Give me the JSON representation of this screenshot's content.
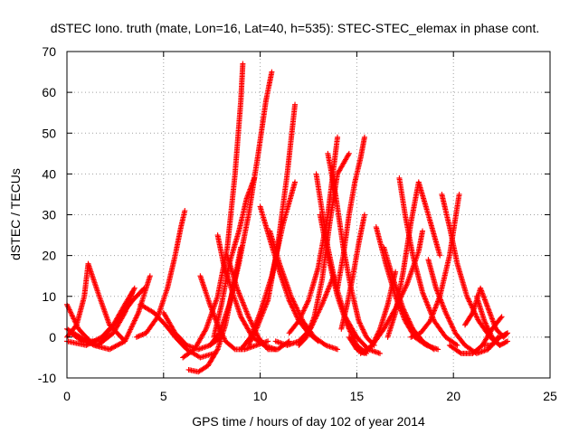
{
  "chart_data": {
    "type": "scatter",
    "title": "dSTEC Iono. truth (mate, Lon=16, Lat=40, h=535): STEC-STEC_elemax in phase cont.",
    "xlabel": "GPS time / hours of day 102 of year 2014",
    "ylabel": "dSTEC  / TECUs",
    "xlim": [
      0,
      25
    ],
    "ylim": [
      -10,
      70
    ],
    "x_ticks": [
      0,
      5,
      10,
      15,
      20,
      25
    ],
    "y_ticks": [
      -10,
      0,
      10,
      20,
      30,
      40,
      50,
      60,
      70
    ],
    "x_tick_labels": [
      "0",
      "5",
      "10",
      "15",
      "20",
      "25"
    ],
    "y_tick_labels": [
      "-10",
      "0",
      "10",
      "20",
      "30",
      "40",
      "50",
      "60",
      "70"
    ],
    "grid": true,
    "marker": "+",
    "marker_color": "#ff0000",
    "series": [
      {
        "x": [
          0.0,
          0.6,
          1.2,
          1.8,
          2.4,
          3.0,
          3.5
        ],
        "y": [
          8,
          2,
          -1,
          -1,
          3,
          8,
          12
        ]
      },
      {
        "x": [
          0.0,
          0.7,
          1.4,
          2.2,
          3.0,
          3.7,
          4.3
        ],
        "y": [
          2,
          0,
          -2,
          -3,
          -1,
          6,
          15
        ]
      },
      {
        "x": [
          0.0,
          0.5,
          0.9,
          1.1,
          1.6,
          2.2,
          3.0
        ],
        "y": [
          0,
          3,
          10,
          18,
          11,
          3,
          -1
        ]
      },
      {
        "x": [
          0.2,
          0.8,
          1.6,
          2.4,
          3.0,
          3.4
        ],
        "y": [
          1,
          -1,
          -2,
          1,
          6,
          11
        ]
      },
      {
        "x": [
          0.0,
          1.0,
          1.8,
          2.6,
          3.4,
          4.0
        ],
        "y": [
          -1,
          -2,
          0,
          4,
          9,
          12
        ]
      },
      {
        "x": [
          3.6,
          4.1,
          4.7,
          5.2,
          5.6,
          5.9,
          6.1
        ],
        "y": [
          0,
          1,
          5,
          12,
          20,
          27,
          31
        ]
      },
      {
        "x": [
          3.8,
          4.5,
          5.1,
          5.6,
          6.2,
          6.9,
          7.6
        ],
        "y": [
          8,
          6,
          3,
          0,
          -3,
          -5,
          -4
        ]
      },
      {
        "x": [
          5.0,
          5.6,
          6.2,
          6.8,
          7.4,
          8.0
        ],
        "y": [
          6,
          1,
          -2,
          -3,
          -2,
          0
        ]
      },
      {
        "x": [
          6.0,
          6.6,
          7.2,
          7.8,
          8.3,
          8.7,
          9.0,
          9.1
        ],
        "y": [
          -5,
          -3,
          2,
          10,
          22,
          40,
          58,
          67
        ]
      },
      {
        "x": [
          6.3,
          6.8,
          7.3,
          7.8,
          8.2,
          8.6,
          9.0
        ],
        "y": [
          -8,
          -8.5,
          -7,
          -3,
          3,
          12,
          22
        ]
      },
      {
        "x": [
          6.9,
          7.4,
          7.8,
          8.2,
          8.7,
          9.2,
          9.8,
          10.4
        ],
        "y": [
          15,
          8,
          3,
          -1,
          -3,
          -3,
          -2,
          -1
        ]
      },
      {
        "x": [
          7.4,
          7.9,
          8.4,
          8.9,
          9.4,
          9.9,
          10.3,
          10.6
        ],
        "y": [
          -2,
          1,
          8,
          18,
          30,
          45,
          58,
          65
        ]
      },
      {
        "x": [
          7.6,
          8.0,
          8.4,
          8.9,
          9.3,
          9.7
        ],
        "y": [
          0,
          8,
          18,
          26,
          34,
          39
        ]
      },
      {
        "x": [
          7.8,
          8.1,
          8.5,
          9.0,
          9.6,
          10.2,
          10.8
        ],
        "y": [
          25,
          18,
          12,
          5,
          0,
          -2,
          -3
        ]
      },
      {
        "x": [
          8.3,
          8.8,
          9.4,
          9.9,
          10.4,
          10.9,
          11.5
        ],
        "y": [
          20,
          12,
          5,
          0,
          -3,
          -3,
          -1
        ]
      },
      {
        "x": [
          9.0,
          9.5,
          10.0,
          10.6,
          11.2,
          11.8
        ],
        "y": [
          -3,
          0,
          6,
          15,
          28,
          38
        ]
      },
      {
        "x": [
          9.4,
          9.8,
          10.4,
          10.9,
          11.4,
          11.8
        ],
        "y": [
          -2,
          2,
          9,
          22,
          40,
          57
        ]
      },
      {
        "x": [
          10.0,
          10.5,
          11.0,
          11.5,
          12.0,
          12.5,
          13.0
        ],
        "y": [
          32,
          24,
          16,
          9,
          4,
          1,
          -1
        ]
      },
      {
        "x": [
          10.5,
          11.0,
          11.6,
          12.2,
          12.8,
          13.4,
          14.0
        ],
        "y": [
          26,
          18,
          10,
          4,
          0,
          -2,
          -3
        ]
      },
      {
        "x": [
          10.8,
          11.4,
          12.0,
          12.6,
          13.2,
          13.8
        ],
        "y": [
          -1,
          -2,
          -1,
          2,
          8,
          15
        ]
      },
      {
        "x": [
          11.5,
          12.0,
          12.5,
          13.0,
          13.5,
          14.0
        ],
        "y": [
          1,
          4,
          9,
          17,
          30,
          49
        ]
      },
      {
        "x": [
          12.0,
          12.4,
          12.8,
          13.2,
          13.6,
          14.0,
          14.6
        ],
        "y": [
          -2,
          0,
          5,
          14,
          28,
          40,
          45
        ]
      },
      {
        "x": [
          12.9,
          13.2,
          13.5,
          13.9,
          14.4,
          15.0,
          15.6,
          16.2
        ],
        "y": [
          40,
          31,
          22,
          13,
          5,
          0,
          -3,
          -4
        ]
      },
      {
        "x": [
          13.1,
          13.5,
          14.0,
          14.5,
          15.0,
          15.5
        ],
        "y": [
          30,
          20,
          10,
          3,
          -2,
          -4
        ]
      },
      {
        "x": [
          13.5,
          13.9,
          14.3,
          14.7,
          15.1,
          15.5,
          15.9
        ],
        "y": [
          45,
          35,
          22,
          12,
          4,
          0,
          -2
        ]
      },
      {
        "x": [
          14.0,
          14.3,
          14.6,
          14.9,
          15.2,
          15.4
        ],
        "y": [
          12,
          20,
          30,
          38,
          44,
          49
        ]
      },
      {
        "x": [
          14.2,
          14.5,
          14.8,
          15.1,
          15.4
        ],
        "y": [
          2,
          8,
          15,
          23,
          30
        ]
      },
      {
        "x": [
          14.6,
          15.0,
          15.4,
          15.8,
          16.2,
          16.6,
          17.0
        ],
        "y": [
          0,
          -3,
          -4,
          -2,
          2,
          8,
          16
        ]
      },
      {
        "x": [
          15.2,
          15.8,
          16.4,
          17.0,
          17.6,
          18.2,
          18.4
        ],
        "y": [
          -4,
          -2,
          2,
          7,
          13,
          21,
          26
        ]
      },
      {
        "x": [
          16.0,
          16.5,
          17.0,
          17.5,
          18.0,
          18.6,
          19.2
        ],
        "y": [
          27,
          18,
          10,
          4,
          0,
          -2,
          -3
        ]
      },
      {
        "x": [
          16.4,
          16.9,
          17.4,
          17.9,
          18.4,
          19.0
        ],
        "y": [
          22,
          14,
          7,
          2,
          -1,
          -3
        ]
      },
      {
        "x": [
          16.6,
          17.0,
          17.4,
          17.8,
          18.2,
          18.7,
          19.3
        ],
        "y": [
          0,
          6,
          16,
          28,
          38,
          30,
          20
        ]
      },
      {
        "x": [
          17.2,
          17.5,
          17.9,
          18.4,
          19.0,
          19.6,
          20.2
        ],
        "y": [
          39,
          30,
          20,
          11,
          4,
          0,
          -2
        ]
      },
      {
        "x": [
          17.8,
          18.3,
          18.8,
          19.3,
          19.8,
          20.3
        ],
        "y": [
          0,
          1,
          4,
          10,
          20,
          35
        ]
      },
      {
        "x": [
          18.7,
          19.1,
          19.6,
          20.1,
          20.6,
          21.2,
          21.8,
          22.3
        ],
        "y": [
          19,
          12,
          6,
          1,
          -2,
          -4,
          -3,
          0
        ]
      },
      {
        "x": [
          19.4,
          19.8,
          20.2,
          20.7,
          21.3,
          21.9,
          22.4
        ],
        "y": [
          35,
          27,
          18,
          10,
          4,
          0,
          -2
        ]
      },
      {
        "x": [
          19.8,
          20.4,
          21.0,
          21.5,
          22.0,
          22.5
        ],
        "y": [
          -2,
          -4,
          -4,
          -2,
          2,
          5
        ]
      },
      {
        "x": [
          20.6,
          21.0,
          21.4,
          21.8,
          22.2,
          22.6,
          22.8
        ],
        "y": [
          3,
          6,
          12,
          7,
          2,
          0,
          1
        ]
      },
      {
        "x": [
          21.2,
          21.6,
          22.0,
          22.4,
          22.8
        ],
        "y": [
          10,
          4,
          0,
          -2,
          -1
        ]
      },
      {
        "x": [
          21.6,
          22.0,
          22.4,
          22.8
        ],
        "y": [
          -2,
          -2,
          0,
          1
        ]
      }
    ]
  }
}
